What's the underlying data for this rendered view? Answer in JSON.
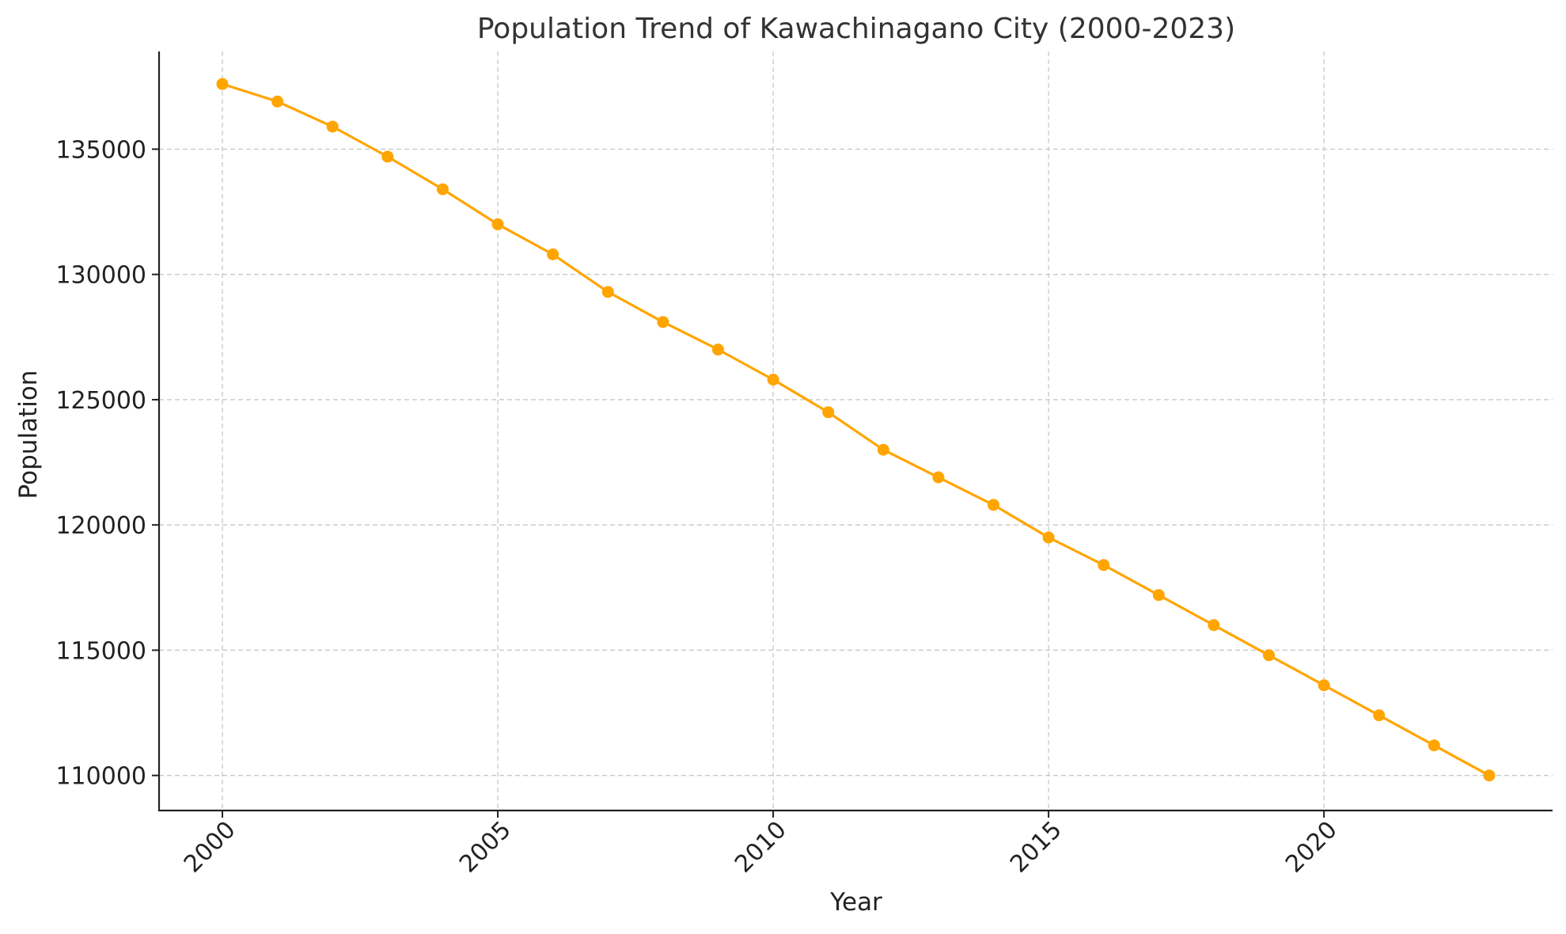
{
  "chart_data": {
    "type": "line",
    "title": "Population Trend of Kawachinagano City (2000-2023)",
    "xlabel": "Year",
    "ylabel": "Population",
    "x_ticks": [
      2000,
      2005,
      2010,
      2015,
      2020
    ],
    "y_ticks": [
      110000,
      115000,
      120000,
      125000,
      130000,
      135000
    ],
    "xlim": [
      1998.85,
      2024.15
    ],
    "ylim": [
      108600,
      138900
    ],
    "grid": true,
    "legend": "none",
    "colors": {
      "line": "#FFA500",
      "grid": "#c8c8c8",
      "axis": "#222222"
    },
    "series": [
      {
        "x": [
          2000,
          2001,
          2002,
          2003,
          2004,
          2005,
          2006,
          2007,
          2008,
          2009,
          2010,
          2011,
          2012,
          2013,
          2014,
          2015,
          2016,
          2017,
          2018,
          2019,
          2020,
          2021,
          2022,
          2023
        ],
        "values": [
          137600,
          136900,
          135900,
          134700,
          133400,
          132000,
          130800,
          129300,
          128100,
          127000,
          125800,
          124500,
          123000,
          121900,
          120800,
          119500,
          118400,
          117200,
          116000,
          114800,
          113600,
          112400,
          111200,
          110000
        ]
      }
    ]
  }
}
